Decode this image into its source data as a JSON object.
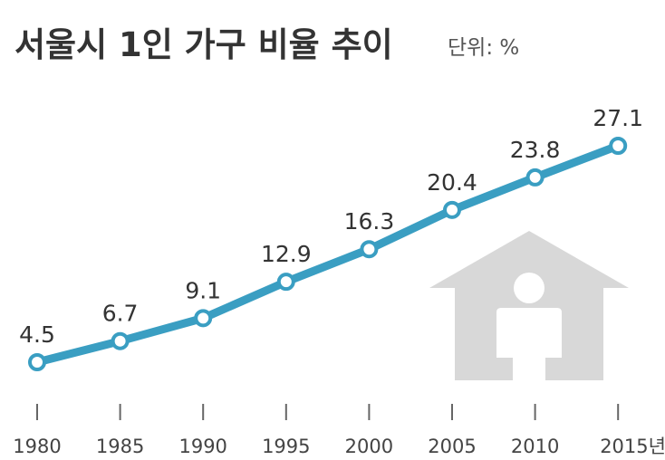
{
  "title": "서울시 1인 가구 비율 추이",
  "unit": "단위: %",
  "colors": {
    "line": "#3a9ec2",
    "marker_fill": "#ffffff",
    "house": "#d8d8d8",
    "person": "#ffffff",
    "tick": "#666666",
    "text": "#333333"
  },
  "chart_data": {
    "type": "line",
    "title": "서울시 1인 가구 비율 추이",
    "unit": "단위: %",
    "categories": [
      "1980",
      "1985",
      "1990",
      "1995",
      "2000",
      "2005",
      "2010",
      "2015년"
    ],
    "values": [
      4.5,
      6.7,
      9.1,
      12.9,
      16.3,
      20.4,
      23.8,
      27.1
    ],
    "value_labels": [
      "4.5",
      "6.7",
      "9.1",
      "12.9",
      "16.3",
      "20.4",
      "23.8",
      "27.1"
    ],
    "xlabel": "",
    "ylabel": "",
    "grid": false,
    "legend": "none",
    "decoration": "house-with-person-icon"
  }
}
